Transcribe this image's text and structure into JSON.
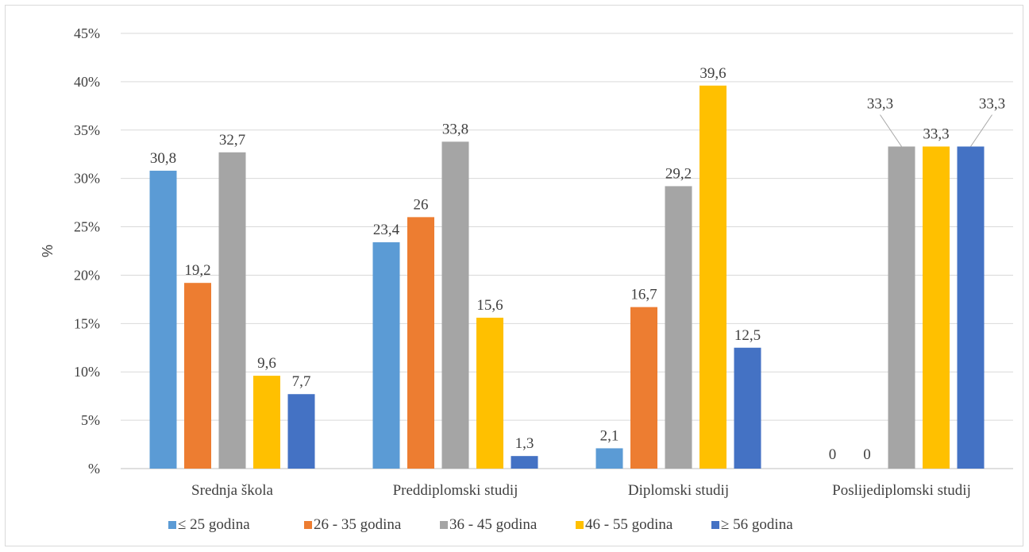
{
  "chart_data": {
    "type": "bar",
    "categories": [
      "Srednja škola",
      "Preddiplomski studij",
      "Diplomski studij",
      "Poslijediplomski studij"
    ],
    "series": [
      {
        "name": "≤ 25 godina",
        "color": "#5b9bd5",
        "values": [
          30.8,
          23.4,
          2.1,
          0
        ]
      },
      {
        "name": "26 - 35 godina",
        "color": "#ed7d31",
        "values": [
          19.2,
          26,
          16.7,
          0
        ]
      },
      {
        "name": "36 - 45 godina",
        "color": "#a5a5a5",
        "values": [
          32.7,
          33.8,
          29.2,
          33.3
        ]
      },
      {
        "name": "46 - 55 godina",
        "color": "#ffc000",
        "values": [
          9.6,
          15.6,
          39.6,
          33.3
        ]
      },
      {
        "name": "≥ 56 godina",
        "color": "#4472c4",
        "values": [
          7.7,
          1.3,
          12.5,
          33.3
        ]
      }
    ],
    "data_labels": [
      [
        "30,8",
        "19,2",
        "32,7",
        "9,6",
        "7,7"
      ],
      [
        "23,4",
        "26",
        "33,8",
        "15,6",
        "1,3"
      ],
      [
        "2,1",
        "16,7",
        "29,2",
        "39,6",
        "12,5"
      ],
      [
        "0",
        "0",
        "33,3",
        "33,3",
        "33,3"
      ]
    ],
    "yticks": [
      "%",
      "5%",
      "10%",
      "15%",
      "20%",
      "25%",
      "30%",
      "35%",
      "40%",
      "45%"
    ],
    "ylabel": "%",
    "xlabel": "",
    "ylim": [
      0,
      45
    ],
    "grid": true,
    "legend_position": "bottom"
  }
}
